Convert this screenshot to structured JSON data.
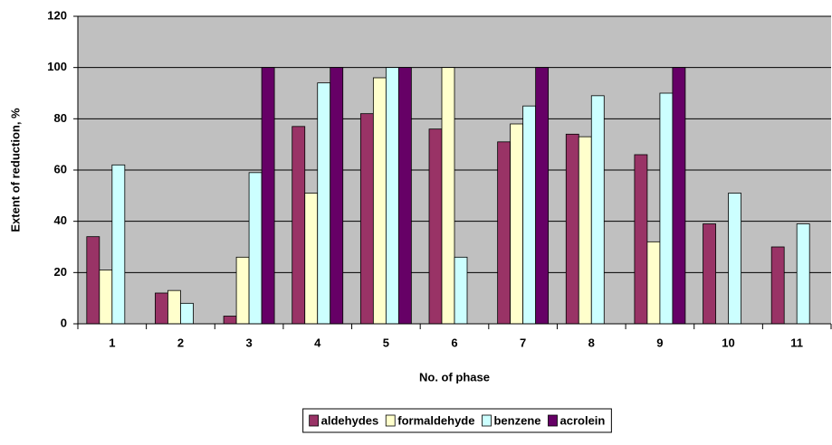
{
  "chart_data": {
    "type": "bar",
    "y_label": "Extent of reduction, %",
    "x_label": "No. of phase",
    "categories": [
      "1",
      "2",
      "3",
      "4",
      "5",
      "6",
      "7",
      "8",
      "9",
      "10",
      "11"
    ],
    "series": [
      {
        "name": "aldehydes",
        "color": "#993366",
        "values": [
          34,
          12,
          3,
          77,
          82,
          76,
          71,
          74,
          66,
          39,
          30
        ]
      },
      {
        "name": "formaldehyde",
        "color": "#ffffcc",
        "values": [
          21,
          13,
          26,
          51,
          96,
          100,
          78,
          73,
          32,
          null,
          null
        ]
      },
      {
        "name": "benzene",
        "color": "#ccffff",
        "values": [
          62,
          8,
          59,
          94,
          100,
          26,
          85,
          89,
          90,
          51,
          39
        ]
      },
      {
        "name": "acrolein",
        "color": "#660066",
        "values": [
          null,
          null,
          100,
          100,
          100,
          null,
          100,
          null,
          100,
          null,
          null
        ]
      }
    ],
    "ylim": [
      0,
      120
    ],
    "yticks": [
      0,
      20,
      40,
      60,
      80,
      100,
      120
    ],
    "grid": true,
    "legend": "bottom"
  }
}
